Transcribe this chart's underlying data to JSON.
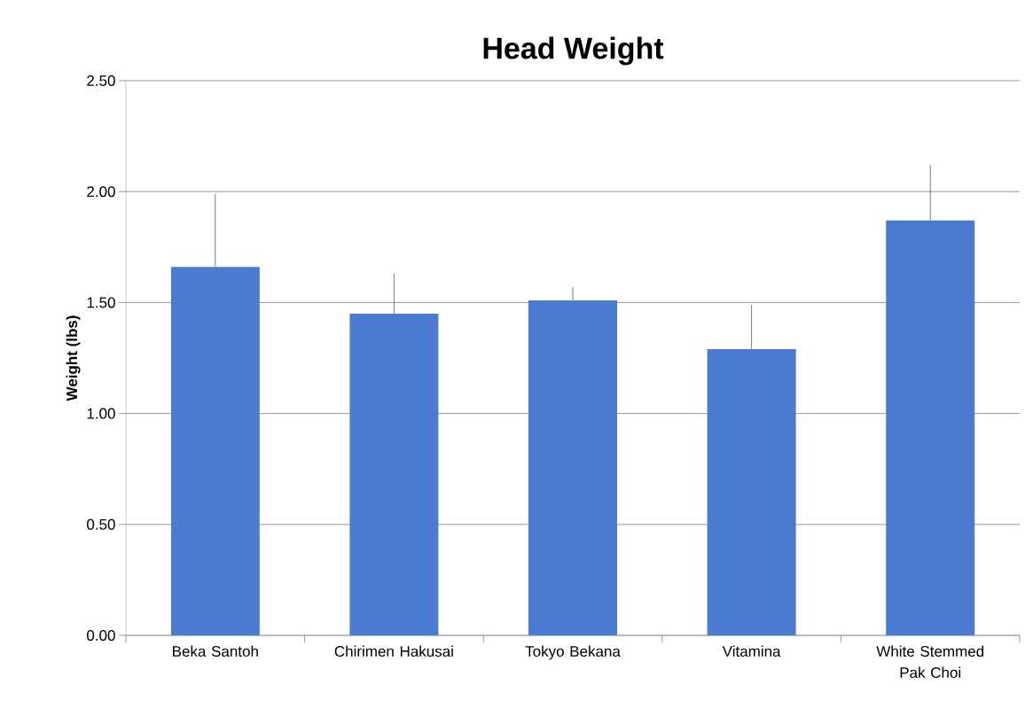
{
  "chart_data": {
    "type": "bar",
    "title": "Head Weight",
    "ylabel": "Weight (lbs)",
    "categories": [
      "Beka Santoh",
      "Chirimen Hakusai",
      "Tokyo Bekana",
      "Vitamina",
      "White Stemmed Pak Choi"
    ],
    "values": [
      1.66,
      1.45,
      1.51,
      1.29,
      1.87
    ],
    "errors": [
      [
        1.66,
        1.99
      ],
      [
        1.45,
        1.63
      ],
      [
        1.51,
        1.57
      ],
      [
        1.29,
        1.49
      ],
      [
        1.87,
        2.12
      ]
    ],
    "color": "#4a7bd0",
    "ylim": [
      0,
      2.5
    ],
    "yticks": [
      {
        "value": 0,
        "label": "0.00"
      },
      {
        "value": 0.5,
        "label": "0.50"
      },
      {
        "value": 1,
        "label": "1.00"
      },
      {
        "value": 1.5,
        "label": "1.50"
      },
      {
        "value": 2,
        "label": "2.00"
      },
      {
        "value": 2.5,
        "label": "2.50"
      }
    ],
    "grid": "y"
  }
}
